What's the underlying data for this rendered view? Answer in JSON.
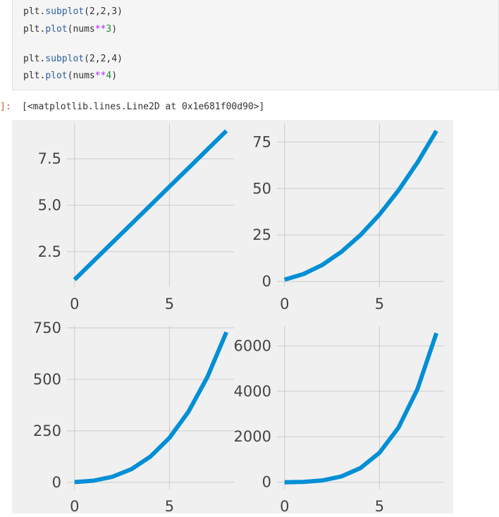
{
  "code": {
    "lines": [
      {
        "prefix": "plt.",
        "fn": "subplot",
        "args": "(2,2,3)"
      },
      {
        "prefix": "plt.",
        "fn": "plot",
        "args_pre": "(nums",
        "op": "**",
        "num": "3",
        "args_post": ")"
      },
      {
        "prefix": "plt.",
        "fn": "subplot",
        "args": "(2,2,4)"
      },
      {
        "prefix": "plt.",
        "fn": "plot",
        "args_pre": "(nums",
        "op": "**",
        "num": "4",
        "args_post": ")"
      }
    ]
  },
  "output": {
    "prompt": "]:",
    "text": "[<matplotlib.lines.Line2D at 0x1e681f00d90>]"
  },
  "colors": {
    "line": "#008fd5",
    "figure_bg": "#f0f0f0",
    "grid": "#cbcbcb",
    "tick_text": "#444444"
  },
  "chart_data": [
    {
      "type": "line",
      "x": [
        0,
        1,
        2,
        3,
        4,
        5,
        6,
        7,
        8
      ],
      "values": [
        1,
        2,
        3,
        4,
        5,
        6,
        7,
        8,
        9
      ],
      "xticks": [
        "0",
        "5"
      ],
      "yticks": [
        "2.5",
        "5.0",
        "7.5"
      ],
      "xlim": [
        -0.4,
        8.4
      ],
      "ylim": [
        0.6,
        9.4
      ],
      "xlabel": "",
      "ylabel": "",
      "title": "",
      "grid": true
    },
    {
      "type": "line",
      "x": [
        0,
        1,
        2,
        3,
        4,
        5,
        6,
        7,
        8
      ],
      "values": [
        1,
        4,
        9,
        16,
        25,
        36,
        49,
        64,
        81
      ],
      "xticks": [
        "0",
        "5"
      ],
      "yticks": [
        "0",
        "25",
        "50",
        "75"
      ],
      "xlim": [
        -0.4,
        8.4
      ],
      "ylim": [
        -3,
        85
      ],
      "xlabel": "",
      "ylabel": "",
      "title": "",
      "grid": true
    },
    {
      "type": "line",
      "x": [
        0,
        1,
        2,
        3,
        4,
        5,
        6,
        7,
        8
      ],
      "values": [
        1,
        8,
        27,
        64,
        125,
        216,
        343,
        512,
        729
      ],
      "xticks": [
        "0",
        "5"
      ],
      "yticks": [
        "0",
        "250",
        "500",
        "750"
      ],
      "xlim": [
        -0.4,
        8.4
      ],
      "ylim": [
        -35,
        760
      ],
      "xlabel": "",
      "ylabel": "",
      "title": "",
      "grid": true
    },
    {
      "type": "line",
      "x": [
        0,
        1,
        2,
        3,
        4,
        5,
        6,
        7,
        8
      ],
      "values": [
        1,
        16,
        81,
        256,
        625,
        1296,
        2401,
        4096,
        6561
      ],
      "xticks": [
        "0",
        "5"
      ],
      "yticks": [
        "0",
        "2000",
        "4000",
        "6000"
      ],
      "xlim": [
        -0.4,
        8.4
      ],
      "ylim": [
        -320,
        6880
      ],
      "xlabel": "",
      "ylabel": "",
      "title": "",
      "grid": true
    }
  ]
}
